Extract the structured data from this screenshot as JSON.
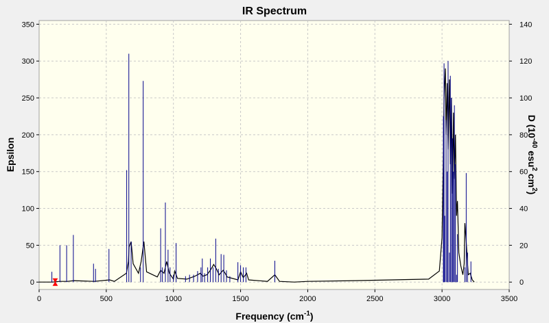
{
  "chart_data": {
    "type": "line",
    "title": "IR Spectrum",
    "xlabel": "Frequency (cm",
    "xlabel_sup": "-1",
    "xlabel_end": ")",
    "ylabel": "Epsilon",
    "y2label_parts": [
      "D (10",
      "-40",
      " esu",
      "2",
      " cm",
      "2",
      ")"
    ],
    "xlim": [
      0,
      3500
    ],
    "ylim": [
      -10,
      355
    ],
    "y2lim": [
      0,
      140
    ],
    "x_ticks": [
      0,
      500,
      1000,
      1500,
      2000,
      2500,
      3000,
      3500
    ],
    "y_ticks": [
      0,
      50,
      100,
      150,
      200,
      250,
      300,
      350
    ],
    "y2_ticks": [
      0,
      20,
      40,
      60,
      80,
      100,
      120,
      140
    ],
    "grid": true,
    "colors": {
      "background": "#ffffee",
      "grid": "#c8c8c8",
      "spectrum": "#000000",
      "stick": "#00008b",
      "marker": "#ff0000"
    },
    "series": [
      {
        "kind": "envelope",
        "x": [
          0,
          100,
          155,
          210,
          260,
          410,
          525,
          560,
          650,
          665,
          670,
          685,
          700,
          740,
          760,
          780,
          800,
          880,
          905,
          930,
          950,
          970,
          1000,
          1010,
          1030,
          1100,
          1160,
          1200,
          1220,
          1250,
          1275,
          1300,
          1320,
          1340,
          1370,
          1385,
          1400,
          1480,
          1500,
          1520,
          1545,
          1560,
          1700,
          1755,
          1790,
          1900,
          2000,
          2350,
          2900,
          2980,
          3000,
          3008,
          3015,
          3025,
          3030,
          3038,
          3045,
          3055,
          3062,
          3070,
          3078,
          3085,
          3092,
          3100,
          3108,
          3115,
          3125,
          3140,
          3155,
          3165,
          3170,
          3180,
          3195,
          3210,
          3225,
          3240
        ],
        "y": [
          0,
          0,
          1,
          1,
          2,
          1,
          3,
          1,
          12,
          28,
          48,
          55,
          25,
          12,
          28,
          55,
          14,
          7,
          16,
          12,
          28,
          12,
          4,
          15,
          5,
          4,
          8,
          12,
          8,
          10,
          16,
          24,
          18,
          10,
          16,
          12,
          7,
          3,
          14,
          6,
          12,
          3,
          1,
          10,
          1,
          0,
          1,
          2,
          4,
          15,
          60,
          150,
          250,
          290,
          200,
          270,
          180,
          275,
          160,
          250,
          120,
          230,
          140,
          200,
          90,
          110,
          40,
          22,
          10,
          25,
          80,
          55,
          10,
          12,
          3,
          0
        ]
      },
      {
        "kind": "sticks",
        "x": [
          95,
          155,
          205,
          255,
          405,
          420,
          520,
          652,
          668,
          685,
          755,
          775,
          905,
          918,
          940,
          960,
          975,
          1000,
          1020,
          1090,
          1120,
          1150,
          1180,
          1205,
          1215,
          1232,
          1255,
          1275,
          1295,
          1315,
          1335,
          1355,
          1375,
          1395,
          1420,
          1480,
          1500,
          1520,
          1540,
          1755,
          3010,
          3015,
          3020,
          3030,
          3038,
          3045,
          3055,
          3062,
          3070,
          3078,
          3085,
          3092,
          3100,
          3108,
          3115,
          3170,
          3180,
          3190,
          3215
        ],
        "y": [
          14,
          50,
          50,
          64,
          25,
          18,
          45,
          152,
          310,
          55,
          20,
          273,
          73,
          20,
          108,
          44,
          20,
          10,
          53,
          8,
          10,
          10,
          15,
          20,
          32,
          12,
          20,
          32,
          20,
          59,
          18,
          38,
          37,
          16,
          8,
          27,
          23,
          20,
          20,
          29,
          225,
          297,
          90,
          220,
          150,
          300,
          40,
          280,
          250,
          195,
          150,
          240,
          160,
          10,
          65,
          20,
          148,
          40,
          28
        ]
      }
    ],
    "markers": [
      {
        "x": 120,
        "y": 0,
        "shape": "hourglass"
      }
    ]
  }
}
